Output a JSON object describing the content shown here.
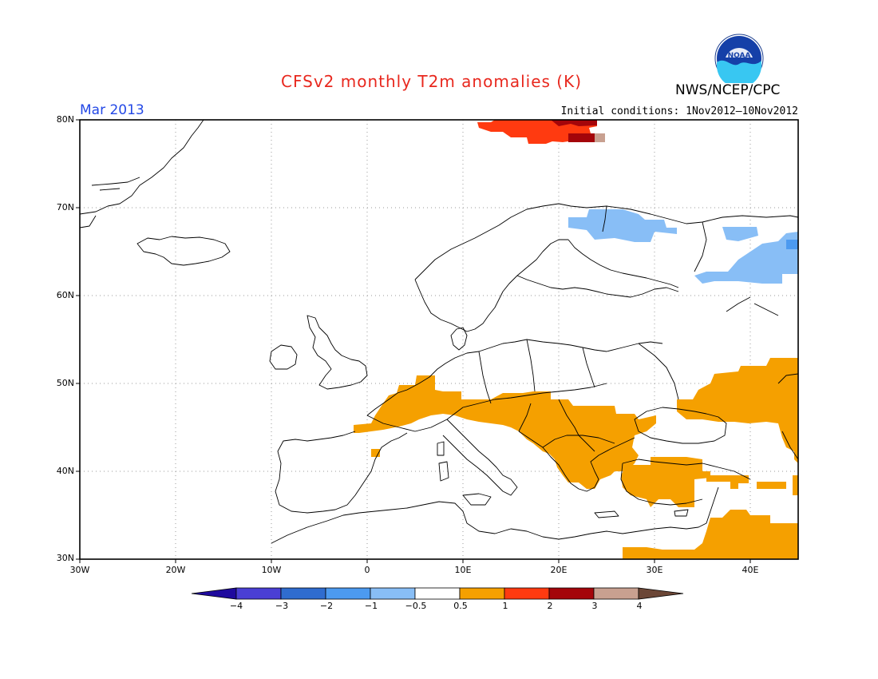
{
  "title": "CFSv2 monthly T2m anomalies (K)",
  "agency": "NWS/NCEP/CPC",
  "logo_text": "NOAA",
  "month": "Mar 2013",
  "initial_conditions": "Initial conditions: 1Nov2012–10Nov2012",
  "lat_labels": [
    "80N",
    "70N",
    "60N",
    "50N",
    "40N",
    "30N"
  ],
  "lon_labels": [
    "30W",
    "20W",
    "10W",
    "0",
    "10E",
    "20E",
    "30E",
    "40E"
  ],
  "colorbar": {
    "labels": [
      "−4",
      "−3",
      "−2",
      "−1",
      "−0.5",
      "0.5",
      "1",
      "2",
      "3",
      "4"
    ],
    "colors": [
      "#1f0a9e",
      "#4a3fd4",
      "#2f6ccf",
      "#4c9af0",
      "#88bef6",
      "#ffffff",
      "#f5a000",
      "#ff3a10",
      "#a4050a",
      "#c8a090",
      "#6b4636"
    ]
  },
  "map": {
    "extent": {
      "lon": [
        -30,
        45
      ],
      "lat": [
        30,
        80
      ]
    },
    "anomaly_regions": [
      {
        "level": "-0.5 to -1",
        "color": "#88bef6",
        "area": "Northern Scandinavia / Kola Peninsula"
      },
      {
        "level": "-0.5 to -1",
        "color": "#88bef6",
        "area": "Northwest Russia"
      },
      {
        "level": "0.5 to 1",
        "color": "#f5a000",
        "area": "Central / Southern Europe and Balkans"
      },
      {
        "level": "0.5 to 1",
        "color": "#f5a000",
        "area": "Turkey"
      },
      {
        "level": "0.5 to 1",
        "color": "#f5a000",
        "area": "Ukraine / Southern Russia"
      },
      {
        "level": "0.5 to 1",
        "color": "#f5a000",
        "area": "Middle East"
      },
      {
        "level": "1 to 2",
        "color": "#ff3a10",
        "area": "Svalbard"
      },
      {
        "level": "2 to 3",
        "color": "#a4050a",
        "area": "Svalbard"
      },
      {
        "level": "3 to 4",
        "color": "#c8a090",
        "area": "Svalbard"
      }
    ]
  }
}
